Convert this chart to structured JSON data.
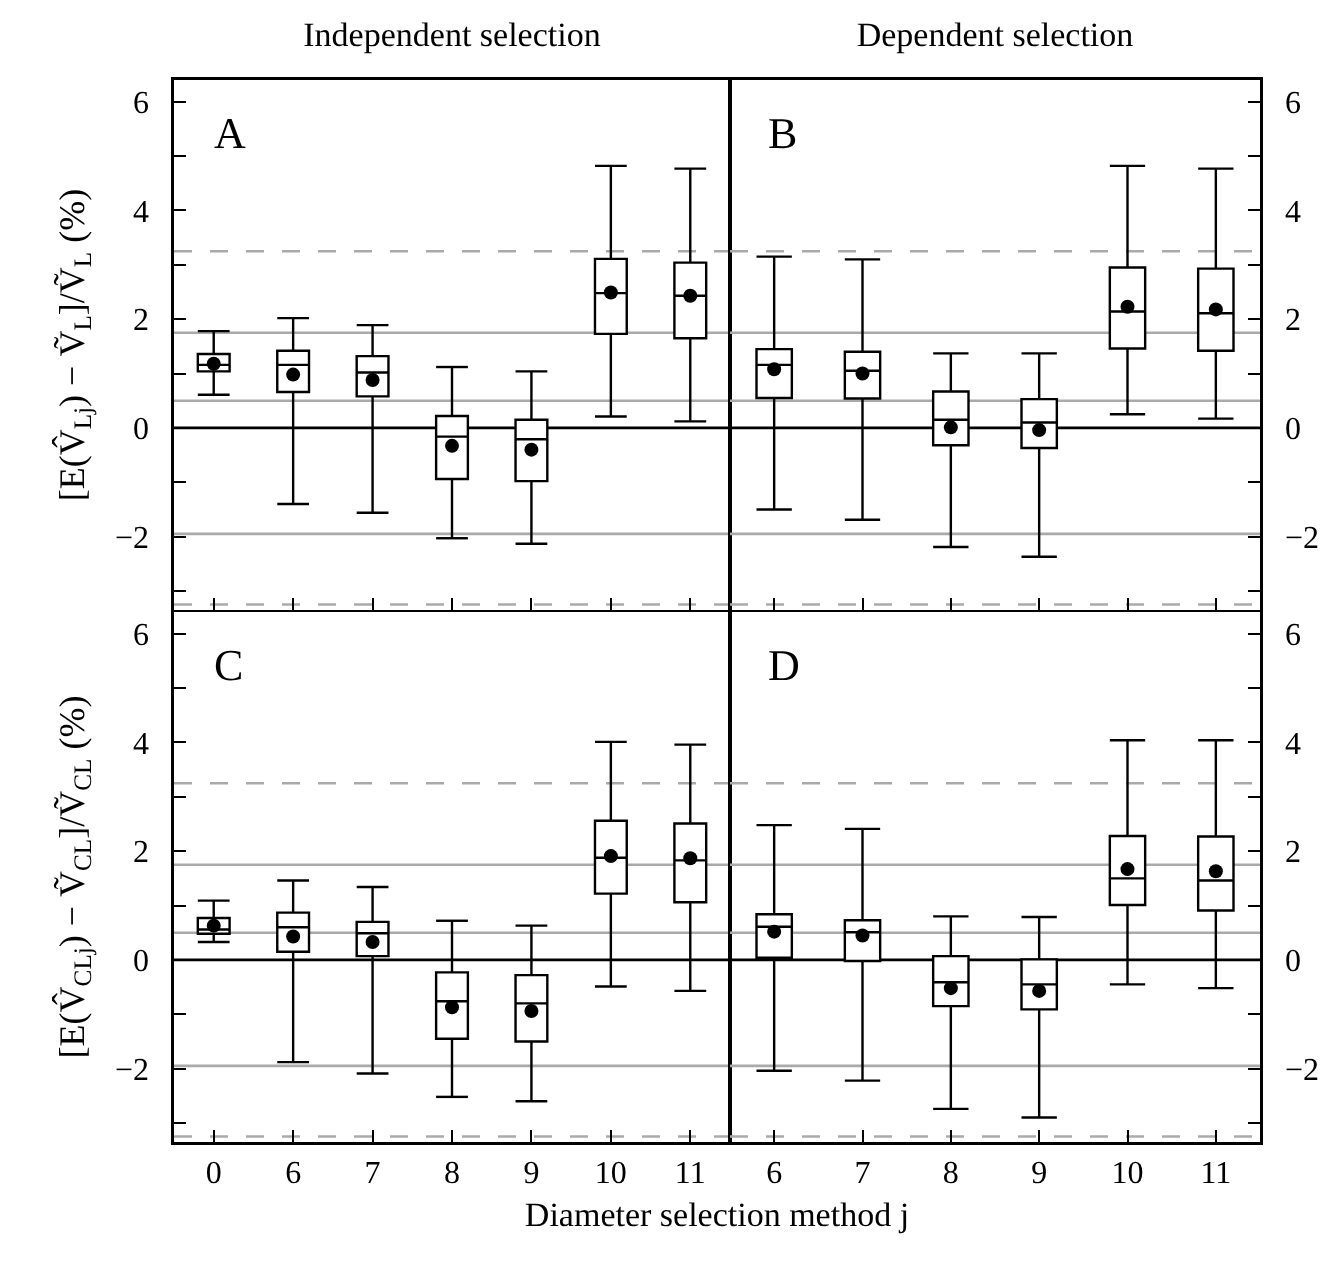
{
  "chart_data": [
    {
      "type": "box",
      "title": "Independent selection",
      "ylabel": "[E(V̂$_{Lj}$) − Ṽ$_{L}$]/Ṽ$_{L}$ (%)",
      "annotations": [
        "A"
      ],
      "tick_labels": "y",
      "categories": [
        "0",
        "6",
        "7",
        "8",
        "9",
        "10",
        "11"
      ],
      "ylim": [
        -3.35,
        6.4
      ],
      "yticks": [
        {
          "value": -3,
          "label": null
        },
        -2,
        {
          "value": -1,
          "label": null
        },
        0,
        {
          "value": 1,
          "label": null
        },
        2,
        {
          "value": 3,
          "label": null
        },
        4,
        {
          "value": 5,
          "label": null
        },
        6
      ],
      "ref_lines": [
        {
          "axis": "y",
          "value": 3.25,
          "color": "#aaaaaa",
          "line_style": "dashed"
        },
        {
          "axis": "y",
          "value": 1.75,
          "color": "#aaaaaa",
          "line_style": "solid"
        },
        {
          "axis": "y",
          "value": 0.5,
          "color": "#aaaaaa",
          "line_style": "solid"
        },
        {
          "axis": "y",
          "value": 0,
          "color": "#000000",
          "line_style": "solid"
        },
        {
          "axis": "y",
          "value": -1.95,
          "color": "#aaaaaa",
          "line_style": "solid"
        },
        {
          "axis": "y",
          "value": -3.25,
          "color": "#aaaaaa",
          "line_style": "dashed"
        }
      ],
      "series": [
        {
          "color": "#000000",
          "boxes": [
            {
              "low": 0.61,
              "q1": 1.04,
              "median": 1.16,
              "q3": 1.36,
              "high": 1.78,
              "mean": 1.18
            },
            {
              "low": -1.4,
              "q1": 0.66,
              "median": 1.16,
              "q3": 1.42,
              "high": 2.02,
              "mean": 0.98
            },
            {
              "low": -1.56,
              "q1": 0.58,
              "median": 1.02,
              "q3": 1.32,
              "high": 1.89,
              "mean": 0.88
            },
            {
              "low": -2.03,
              "q1": -0.94,
              "median": -0.16,
              "q3": 0.22,
              "high": 1.12,
              "mean": -0.33
            },
            {
              "low": -2.13,
              "q1": -0.98,
              "median": -0.21,
              "q3": 0.15,
              "high": 1.04,
              "mean": -0.4
            },
            {
              "low": 0.21,
              "q1": 1.73,
              "median": 2.48,
              "q3": 3.11,
              "high": 4.82,
              "mean": 2.49
            },
            {
              "low": 0.12,
              "q1": 1.65,
              "median": 2.43,
              "q3": 3.04,
              "high": 4.77,
              "mean": 2.43
            }
          ]
        }
      ]
    },
    {
      "type": "box",
      "title": "Dependent selection",
      "annotations": [
        "B"
      ],
      "tick_labels": "y",
      "categories": [
        "6",
        "7",
        "8",
        "9",
        "10",
        "11"
      ],
      "ylim": [
        -3.35,
        6.4
      ],
      "yticks": [
        {
          "value": -3,
          "label": null
        },
        -2,
        {
          "value": -1,
          "label": null
        },
        0,
        {
          "value": 1,
          "label": null
        },
        2,
        {
          "value": 3,
          "label": null
        },
        4,
        {
          "value": 5,
          "label": null
        },
        6
      ],
      "ref_lines": [
        {
          "axis": "y",
          "value": 3.25,
          "color": "#aaaaaa",
          "line_style": "dashed"
        },
        {
          "axis": "y",
          "value": 1.75,
          "color": "#aaaaaa",
          "line_style": "solid"
        },
        {
          "axis": "y",
          "value": 0.5,
          "color": "#aaaaaa",
          "line_style": "solid"
        },
        {
          "axis": "y",
          "value": 0,
          "color": "#000000",
          "line_style": "solid"
        },
        {
          "axis": "y",
          "value": -1.95,
          "color": "#aaaaaa",
          "line_style": "solid"
        },
        {
          "axis": "y",
          "value": -3.25,
          "color": "#aaaaaa",
          "line_style": "dashed"
        }
      ],
      "series": [
        {
          "color": "#000000",
          "boxes": [
            {
              "low": -1.5,
              "q1": 0.55,
              "median": 1.16,
              "q3": 1.45,
              "high": 3.15,
              "mean": 1.08
            },
            {
              "low": -1.69,
              "q1": 0.54,
              "median": 1.05,
              "q3": 1.4,
              "high": 3.1,
              "mean": 1.0
            },
            {
              "low": -2.19,
              "q1": -0.32,
              "median": 0.15,
              "q3": 0.67,
              "high": 1.37,
              "mean": 0.01
            },
            {
              "low": -2.37,
              "q1": -0.37,
              "median": 0.1,
              "q3": 0.53,
              "high": 1.37,
              "mean": -0.04
            },
            {
              "low": 0.25,
              "q1": 1.46,
              "median": 2.14,
              "q3": 2.95,
              "high": 4.82,
              "mean": 2.23
            },
            {
              "low": 0.17,
              "q1": 1.42,
              "median": 2.11,
              "q3": 2.93,
              "high": 4.77,
              "mean": 2.18
            }
          ]
        }
      ]
    },
    {
      "type": "box",
      "ylabel": "[E(V̂$_{CLj}$) − Ṽ$_{CL}$]/Ṽ$_{CL}$ (%)",
      "xlabel": "Diameter selection method j",
      "annotations": [
        "C"
      ],
      "categories": [
        "0",
        "6",
        "7",
        "8",
        "9",
        "10",
        "11"
      ],
      "ylim": [
        -3.35,
        6.4
      ],
      "yticks": [
        {
          "value": -3,
          "label": null
        },
        -2,
        {
          "value": -1,
          "label": null
        },
        0,
        {
          "value": 1,
          "label": null
        },
        2,
        {
          "value": 3,
          "label": null
        },
        4,
        {
          "value": 5,
          "label": null
        },
        6
      ],
      "ref_lines": [
        {
          "axis": "y",
          "value": 3.25,
          "color": "#aaaaaa",
          "line_style": "dashed"
        },
        {
          "axis": "y",
          "value": 1.75,
          "color": "#aaaaaa",
          "line_style": "solid"
        },
        {
          "axis": "y",
          "value": 0.5,
          "color": "#aaaaaa",
          "line_style": "solid"
        },
        {
          "axis": "y",
          "value": 0,
          "color": "#000000",
          "line_style": "solid"
        },
        {
          "axis": "y",
          "value": -1.95,
          "color": "#aaaaaa",
          "line_style": "solid"
        },
        {
          "axis": "y",
          "value": -3.25,
          "color": "#aaaaaa",
          "line_style": "dashed"
        }
      ],
      "series": [
        {
          "color": "#000000",
          "boxes": [
            {
              "low": 0.33,
              "q1": 0.48,
              "median": 0.56,
              "q3": 0.77,
              "high": 1.09,
              "mean": 0.63
            },
            {
              "low": -1.88,
              "q1": 0.15,
              "median": 0.6,
              "q3": 0.87,
              "high": 1.46,
              "mean": 0.43
            },
            {
              "low": -2.09,
              "q1": 0.07,
              "median": 0.49,
              "q3": 0.7,
              "high": 1.34,
              "mean": 0.33
            },
            {
              "low": -2.52,
              "q1": -1.45,
              "median": -0.76,
              "q3": -0.23,
              "high": 0.72,
              "mean": -0.87
            },
            {
              "low": -2.6,
              "q1": -1.5,
              "median": -0.8,
              "q3": -0.28,
              "high": 0.63,
              "mean": -0.94
            },
            {
              "low": -0.49,
              "q1": 1.22,
              "median": 1.88,
              "q3": 2.56,
              "high": 4.01,
              "mean": 1.91
            },
            {
              "low": -0.57,
              "q1": 1.06,
              "median": 1.83,
              "q3": 2.51,
              "high": 3.96,
              "mean": 1.87
            }
          ]
        }
      ]
    },
    {
      "type": "box",
      "annotations": [
        "D"
      ],
      "categories": [
        "6",
        "7",
        "8",
        "9",
        "10",
        "11"
      ],
      "ylim": [
        -3.35,
        6.4
      ],
      "yticks": [
        {
          "value": -3,
          "label": null
        },
        -2,
        {
          "value": -1,
          "label": null
        },
        0,
        {
          "value": 1,
          "label": null
        },
        2,
        {
          "value": 3,
          "label": null
        },
        4,
        {
          "value": 5,
          "label": null
        },
        6
      ],
      "ref_lines": [
        {
          "axis": "y",
          "value": 3.25,
          "color": "#aaaaaa",
          "line_style": "dashed"
        },
        {
          "axis": "y",
          "value": 1.75,
          "color": "#aaaaaa",
          "line_style": "solid"
        },
        {
          "axis": "y",
          "value": 0.5,
          "color": "#aaaaaa",
          "line_style": "solid"
        },
        {
          "axis": "y",
          "value": 0,
          "color": "#000000",
          "line_style": "solid"
        },
        {
          "axis": "y",
          "value": -1.95,
          "color": "#aaaaaa",
          "line_style": "solid"
        },
        {
          "axis": "y",
          "value": -3.25,
          "color": "#aaaaaa",
          "line_style": "dashed"
        }
      ],
      "series": [
        {
          "color": "#000000",
          "boxes": [
            {
              "low": -2.04,
              "q1": 0.04,
              "median": 0.61,
              "q3": 0.84,
              "high": 2.48,
              "mean": 0.52
            },
            {
              "low": -2.22,
              "q1": -0.02,
              "median": 0.51,
              "q3": 0.73,
              "high": 2.41,
              "mean": 0.45
            },
            {
              "low": -2.74,
              "q1": -0.85,
              "median": -0.41,
              "q3": 0.07,
              "high": 0.8,
              "mean": -0.52
            },
            {
              "low": -2.9,
              "q1": -0.91,
              "median": -0.45,
              "q3": 0.01,
              "high": 0.79,
              "mean": -0.57
            },
            {
              "low": -0.45,
              "q1": 1.01,
              "median": 1.5,
              "q3": 2.28,
              "high": 4.04,
              "mean": 1.67
            },
            {
              "low": -0.52,
              "q1": 0.91,
              "median": 1.46,
              "q3": 2.27,
              "high": 4.04,
              "mean": 1.63
            }
          ]
        }
      ]
    }
  ]
}
